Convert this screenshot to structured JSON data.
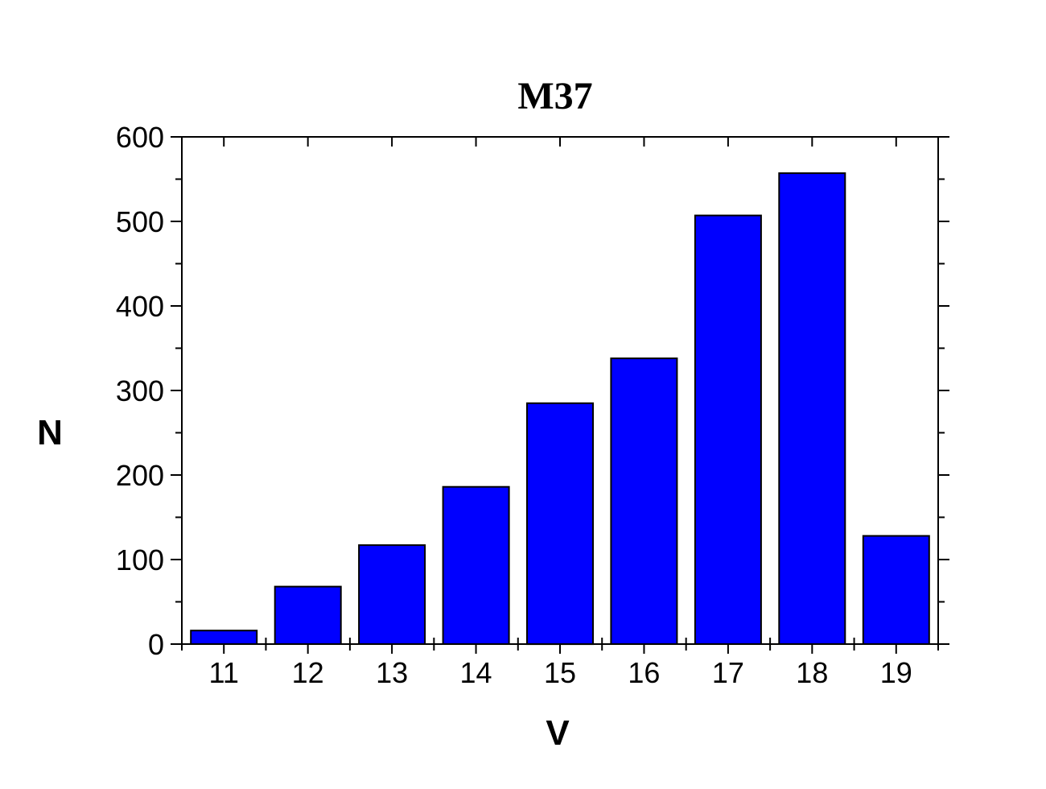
{
  "chart_data": {
    "type": "bar",
    "title": "M37",
    "xlabel": "V",
    "ylabel": "N",
    "categories": [
      "11",
      "12",
      "13",
      "14",
      "15",
      "16",
      "17",
      "18",
      "19"
    ],
    "values": [
      16,
      68,
      117,
      186,
      285,
      338,
      507,
      557,
      128
    ],
    "ylim": [
      0,
      600
    ],
    "yticks": [
      "0",
      "100",
      "200",
      "300",
      "400",
      "500",
      "600"
    ],
    "grid": false,
    "legend": "none",
    "colors": {
      "bar_fill": "#0000ff",
      "bar_stroke": "#000000",
      "axis": "#000000"
    }
  }
}
